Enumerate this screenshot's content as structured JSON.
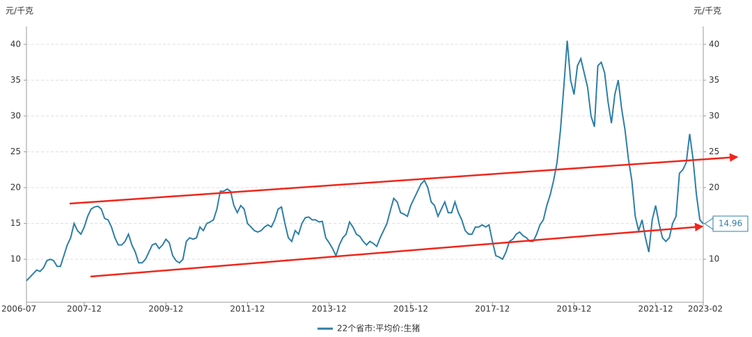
{
  "chart_data": {
    "type": "line",
    "y_unit": "元/千克",
    "x": [
      "2006-07",
      "2006-08",
      "2006-09",
      "2006-10",
      "2006-11",
      "2006-12",
      "2007-01",
      "2007-02",
      "2007-03",
      "2007-04",
      "2007-05",
      "2007-06",
      "2007-07",
      "2007-08",
      "2007-09",
      "2007-10",
      "2007-11",
      "2007-12",
      "2008-01",
      "2008-02",
      "2008-03",
      "2008-04",
      "2008-05",
      "2008-06",
      "2008-07",
      "2008-08",
      "2008-09",
      "2008-10",
      "2008-11",
      "2008-12",
      "2009-01",
      "2009-02",
      "2009-03",
      "2009-04",
      "2009-05",
      "2009-06",
      "2009-07",
      "2009-08",
      "2009-09",
      "2009-10",
      "2009-11",
      "2009-12",
      "2010-01",
      "2010-02",
      "2010-03",
      "2010-04",
      "2010-05",
      "2010-06",
      "2010-07",
      "2010-08",
      "2010-09",
      "2010-10",
      "2010-11",
      "2010-12",
      "2011-01",
      "2011-02",
      "2011-03",
      "2011-04",
      "2011-05",
      "2011-06",
      "2011-07",
      "2011-08",
      "2011-09",
      "2011-10",
      "2011-11",
      "2011-12",
      "2012-01",
      "2012-02",
      "2012-03",
      "2012-04",
      "2012-05",
      "2012-06",
      "2012-07",
      "2012-08",
      "2012-09",
      "2012-10",
      "2012-11",
      "2012-12",
      "2013-01",
      "2013-02",
      "2013-03",
      "2013-04",
      "2013-05",
      "2013-06",
      "2013-07",
      "2013-08",
      "2013-09",
      "2013-10",
      "2013-11",
      "2013-12",
      "2014-01",
      "2014-02",
      "2014-03",
      "2014-04",
      "2014-05",
      "2014-06",
      "2014-07",
      "2014-08",
      "2014-09",
      "2014-10",
      "2014-11",
      "2014-12",
      "2015-01",
      "2015-02",
      "2015-03",
      "2015-04",
      "2015-05",
      "2015-06",
      "2015-07",
      "2015-08",
      "2015-09",
      "2015-10",
      "2015-11",
      "2015-12",
      "2016-01",
      "2016-02",
      "2016-03",
      "2016-04",
      "2016-05",
      "2016-06",
      "2016-07",
      "2016-08",
      "2016-09",
      "2016-10",
      "2016-11",
      "2016-12",
      "2017-01",
      "2017-02",
      "2017-03",
      "2017-04",
      "2017-05",
      "2017-06",
      "2017-07",
      "2017-08",
      "2017-09",
      "2017-10",
      "2017-11",
      "2017-12",
      "2018-01",
      "2018-02",
      "2018-03",
      "2018-04",
      "2018-05",
      "2018-06",
      "2018-07",
      "2018-08",
      "2018-09",
      "2018-10",
      "2018-11",
      "2018-12",
      "2019-01",
      "2019-02",
      "2019-03",
      "2019-04",
      "2019-05",
      "2019-06",
      "2019-07",
      "2019-08",
      "2019-09",
      "2019-10",
      "2019-11",
      "2019-12",
      "2020-01",
      "2020-02",
      "2020-03",
      "2020-04",
      "2020-05",
      "2020-06",
      "2020-07",
      "2020-08",
      "2020-09",
      "2020-10",
      "2020-11",
      "2020-12",
      "2021-01",
      "2021-02",
      "2021-03",
      "2021-04",
      "2021-05",
      "2021-06",
      "2021-07",
      "2021-08",
      "2021-09",
      "2021-10",
      "2021-11",
      "2021-12",
      "2022-01",
      "2022-02",
      "2022-03",
      "2022-04",
      "2022-05",
      "2022-06",
      "2022-07",
      "2022-08",
      "2022-09",
      "2022-10",
      "2022-11",
      "2022-12",
      "2023-01",
      "2023-02"
    ],
    "series": [
      {
        "name": "22个省市:平均价:生猪",
        "color": "#2e7ea6",
        "values": [
          7,
          7.5,
          8,
          8.5,
          8.3,
          8.8,
          9.8,
          10,
          9.8,
          9,
          9,
          10.5,
          12,
          13,
          15,
          14,
          13.5,
          14.5,
          16,
          17,
          17.3,
          17.4,
          17,
          15.7,
          15.5,
          14.5,
          13,
          12,
          12,
          12.5,
          13.5,
          12,
          11,
          9.5,
          9.5,
          10,
          11,
          12,
          12.2,
          11.5,
          12,
          12.8,
          12.3,
          10.5,
          9.8,
          9.5,
          10,
          12.5,
          13,
          12.8,
          13,
          14.5,
          14,
          15,
          15.2,
          15.5,
          17,
          19.5,
          19.5,
          19.8,
          19.5,
          17.5,
          16.5,
          17.5,
          17,
          15,
          14.5,
          14,
          13.8,
          14,
          14.5,
          14.8,
          14.5,
          15.5,
          17,
          17.3,
          15,
          13,
          12.5,
          14,
          13.5,
          15,
          15.8,
          15.9,
          15.5,
          15.5,
          15.2,
          15.3,
          13,
          12.3,
          11.5,
          10.5,
          12,
          13,
          13.5,
          15.2,
          14.5,
          13.5,
          13.2,
          12.5,
          12,
          12.5,
          12.2,
          11.8,
          13,
          14,
          15,
          16.8,
          18.5,
          18,
          16.5,
          16.3,
          16,
          17.5,
          18.5,
          19.5,
          20.5,
          21,
          20,
          18,
          17.5,
          16,
          17,
          18,
          16.5,
          16.5,
          18,
          16.5,
          15.5,
          14,
          13.5,
          13.5,
          14.5,
          14.5,
          14.8,
          14.5,
          14.8,
          12.5,
          10.5,
          10.3,
          10,
          11,
          12.5,
          12.8,
          13.5,
          13.8,
          13.3,
          13,
          12.5,
          12.5,
          13.5,
          14.8,
          15.5,
          17.5,
          19,
          21,
          23.5,
          28,
          34,
          40.5,
          35,
          33,
          37,
          38,
          36,
          34,
          30,
          28.5,
          37,
          37.5,
          36,
          32,
          29,
          33,
          35,
          31,
          28,
          24,
          21,
          16,
          14,
          15.5,
          13,
          11,
          15.5,
          17.5,
          15,
          13,
          12.5,
          13,
          15,
          16,
          22,
          22.5,
          23.5,
          27.5,
          24,
          19,
          15.5,
          14.96
        ]
      }
    ],
    "ylim": [
      4,
      42.5
    ],
    "yticks": [
      10,
      15,
      20,
      25,
      30,
      35,
      40
    ],
    "y2lim": [
      4,
      42.5
    ],
    "y2ticks": [
      10,
      15,
      20,
      25,
      30,
      35,
      40
    ],
    "xticks": [
      "2006-07",
      "2007-12",
      "2009-12",
      "2011-12",
      "2013-12",
      "2015-12",
      "2017-12",
      "2019-12",
      "2021-12",
      "2023-02"
    ],
    "grid": true
  }
}
